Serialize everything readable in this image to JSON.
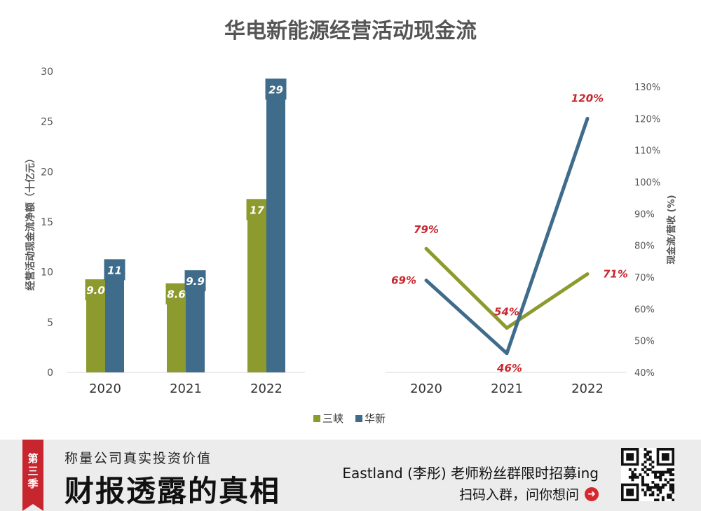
{
  "chart_data": [
    {
      "type": "bar",
      "title": "华电新能源经营活动现金流",
      "ylabel": "经营活动现金流净额（十亿元）",
      "ylim": [
        0,
        30
      ],
      "yticks": [
        0,
        5,
        10,
        15,
        20,
        25,
        30
      ],
      "categories": [
        "2020",
        "2021",
        "2022"
      ],
      "series": [
        {
          "name": "三峡",
          "color": "#8c9a2e",
          "values": [
            9.0,
            8.6,
            17
          ],
          "labels": [
            "9.0",
            "8.6",
            "17"
          ]
        },
        {
          "name": "华新",
          "color": "#406c8c",
          "values": [
            11,
            9.9,
            29
          ],
          "labels": [
            "11",
            "9.9",
            "29"
          ]
        }
      ]
    },
    {
      "type": "line",
      "ylabel": "现金流/营收 (%)",
      "ylim": [
        40,
        130
      ],
      "yticks": [
        "40%",
        "50%",
        "60%",
        "70%",
        "80%",
        "90%",
        "100%",
        "110%",
        "120%",
        "130%"
      ],
      "categories": [
        "2020",
        "2021",
        "2022"
      ],
      "series": [
        {
          "name": "三峡",
          "color": "#8c9a2e",
          "values": [
            79,
            54,
            71
          ],
          "labels": [
            "79%",
            "54%",
            "71%"
          ]
        },
        {
          "name": "华新",
          "color": "#406c8c",
          "values": [
            69,
            46,
            120
          ],
          "labels": [
            "69%",
            "46%",
            "120%"
          ]
        }
      ]
    }
  ],
  "legend": {
    "items": [
      {
        "name": "三峡",
        "color": "#8c9a2e"
      },
      {
        "name": "华新",
        "color": "#406c8c"
      }
    ]
  },
  "banner": {
    "season": [
      "第",
      "三",
      "季"
    ],
    "tagline": "称量公司真实投资价值",
    "headline": "财报透露的真相",
    "promo_main": "Eastland (李彤) 老师粉丝群限时招募ing",
    "promo_sub": "扫码入群，问你想问",
    "arrow_icon": "arrow-right-circle-icon",
    "qr_icon": "qr-code-icon"
  }
}
